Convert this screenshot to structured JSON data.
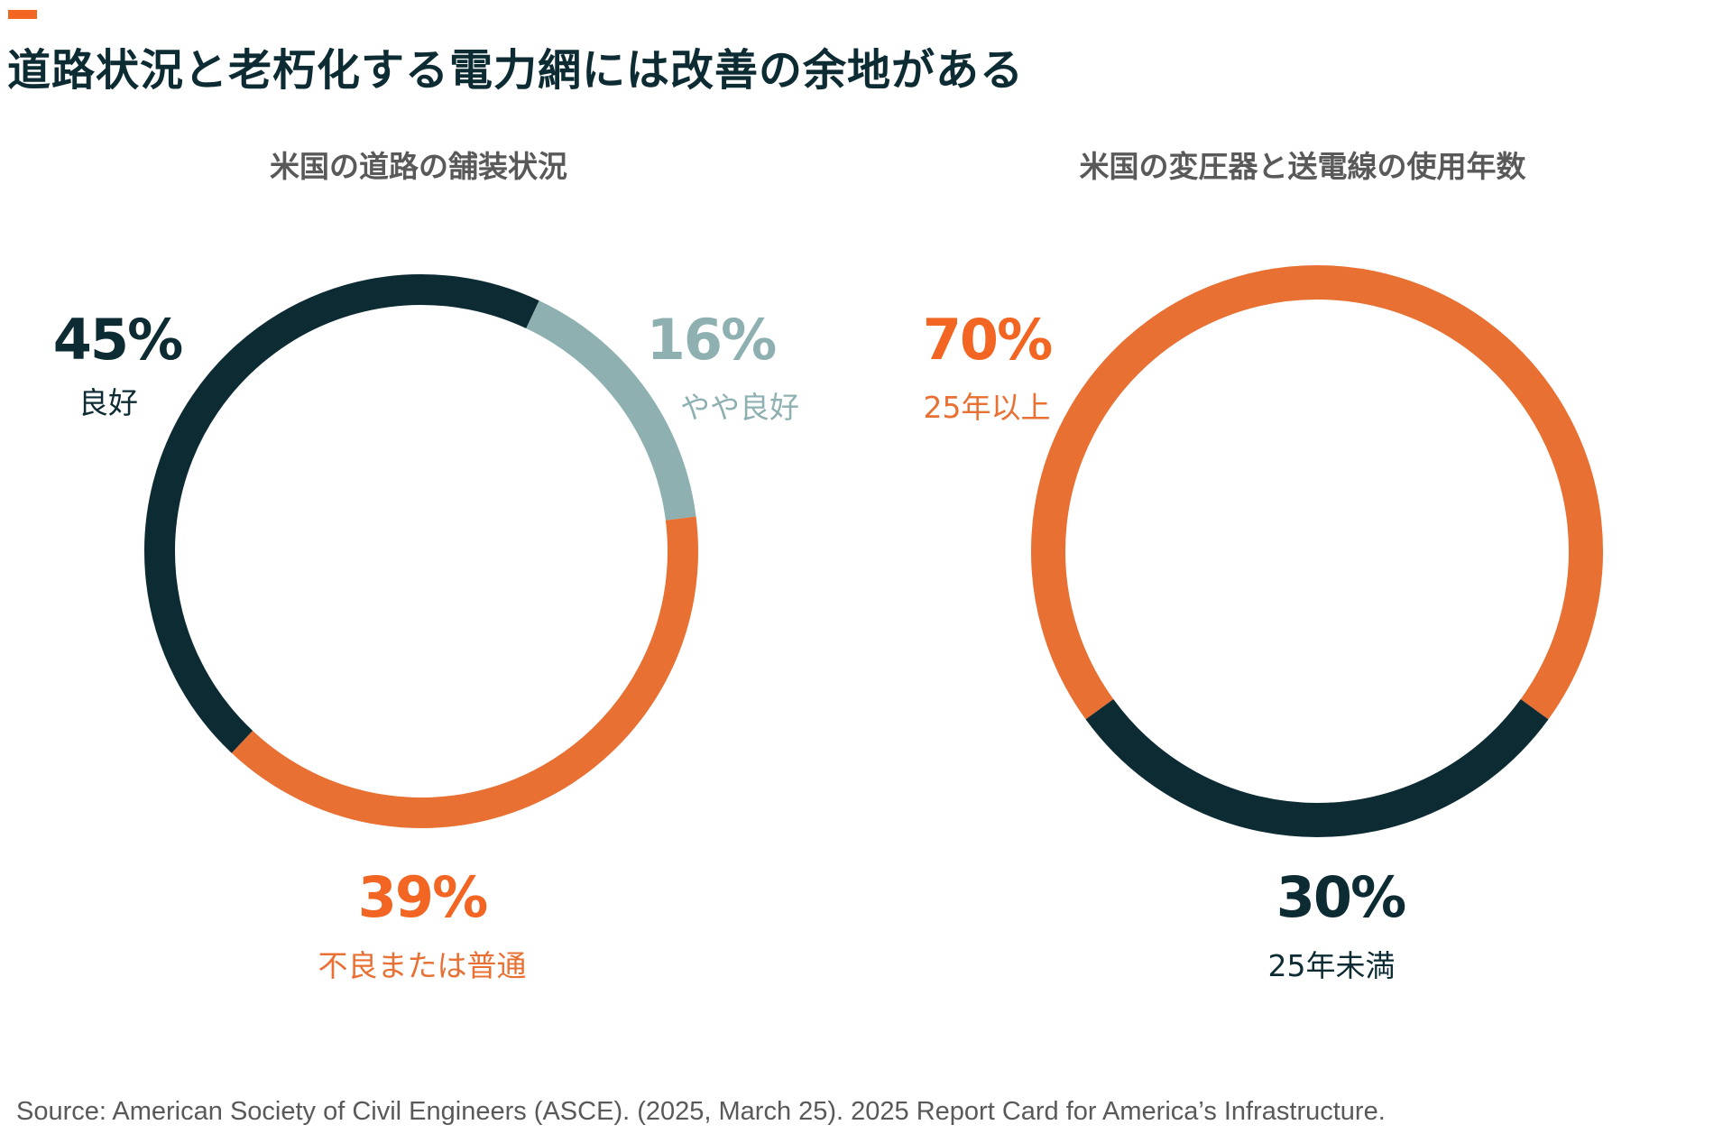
{
  "title": "道路状況と老朽化する電力網には改善の余地がある",
  "colors": {
    "accent": "#f26522",
    "dark": "#0c2b33",
    "orange": "#e87033",
    "light": "#8fb0b1",
    "orange_text": "#f26522"
  },
  "chart_data": [
    {
      "type": "pie",
      "title": "米国の道路の舗装状況",
      "donut": true,
      "slices": [
        {
          "label": "良好",
          "value": 45,
          "display": "45%"
        },
        {
          "label": "やや良好",
          "value": 16,
          "display": "16%"
        },
        {
          "label": "不良または普通",
          "value": 39,
          "display": "39%"
        }
      ]
    },
    {
      "type": "pie",
      "title": "米国の変圧器と送電線の使用年数",
      "donut": true,
      "slices": [
        {
          "label": "25年以上",
          "value": 70,
          "display": "70%"
        },
        {
          "label": "25年未満",
          "value": 30,
          "display": "30%"
        }
      ]
    }
  ],
  "source": "Source: American Society of Civil Engineers (ASCE). (2025, March 25). 2025 Report Card for America’s Infrastructure."
}
